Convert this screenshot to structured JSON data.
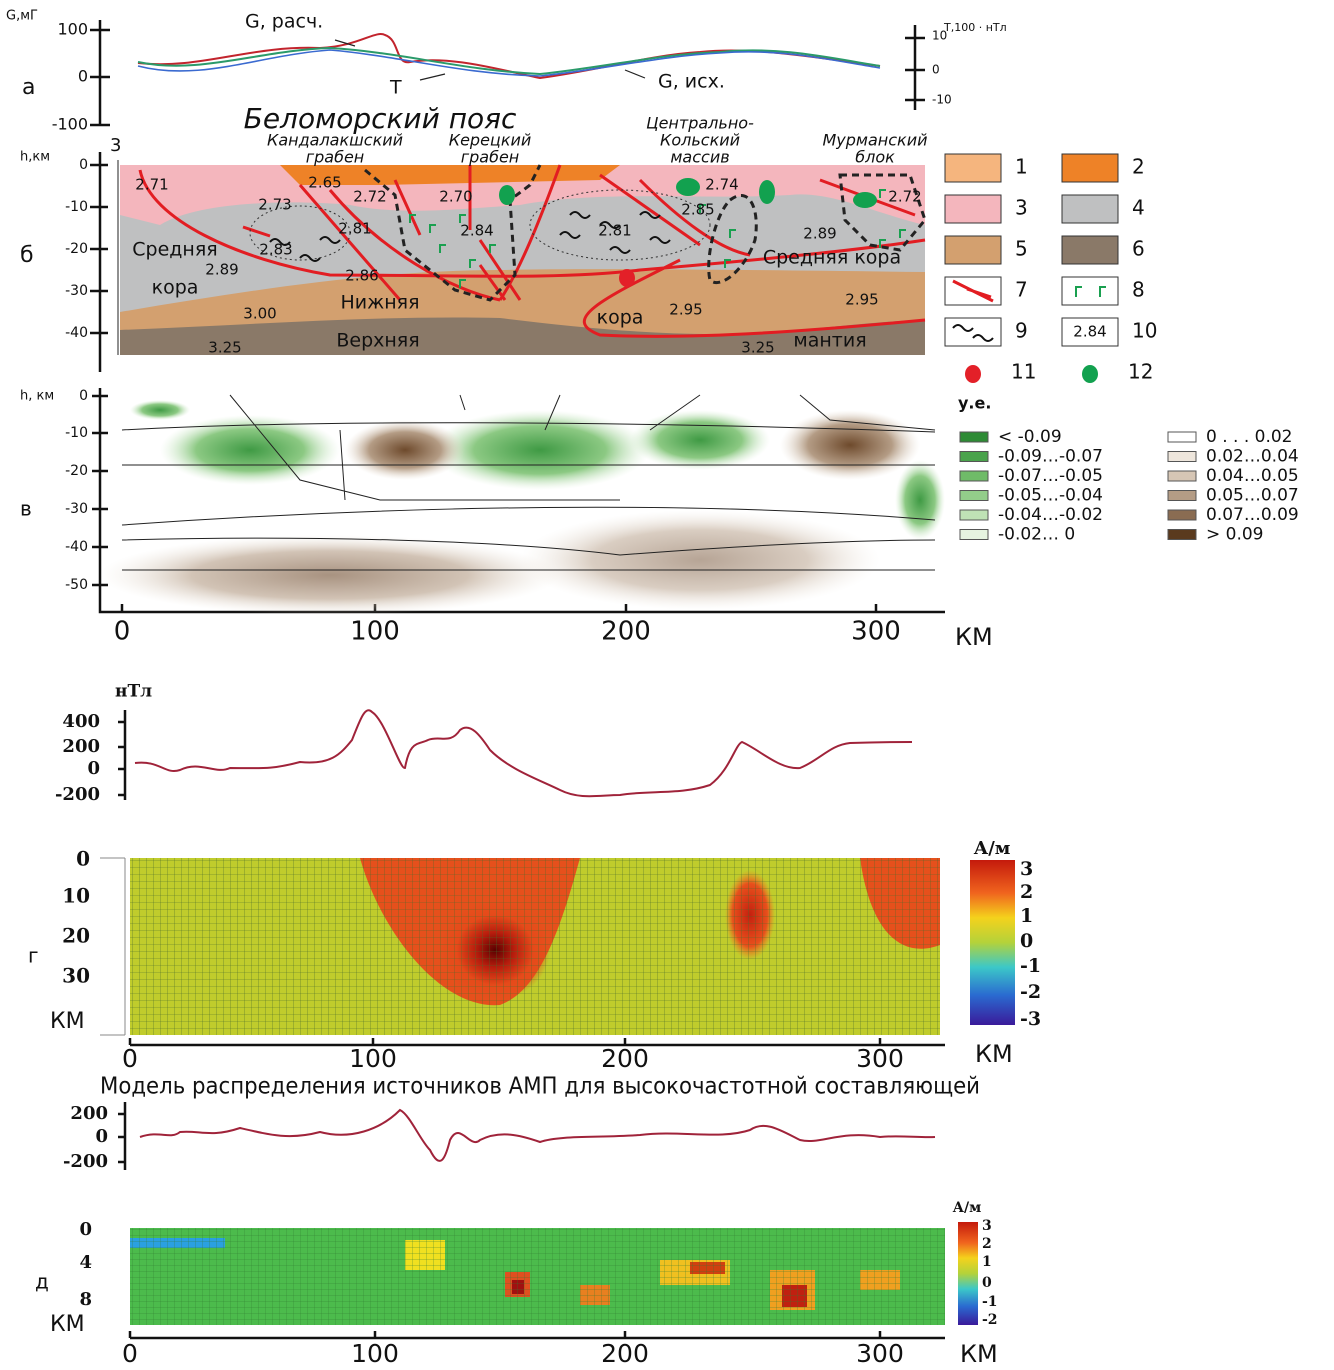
{
  "panel_a": {
    "label": "а",
    "y_axis_label": "G,мГ",
    "y_ticks": [
      100,
      0,
      -100
    ],
    "y2_axis_label": "T,100 · нТл",
    "y2_ticks": [
      10,
      0,
      -10
    ],
    "annotations": [
      "G, расч.",
      "T",
      "G, исх."
    ]
  },
  "panel_b": {
    "label": "б",
    "profile_number": 3,
    "title": "Беломорский пояс",
    "y_axis_label": "h,км",
    "y_ticks": [
      0,
      -10,
      -20,
      -30,
      -40
    ],
    "blocks": [
      [
        "Кандалакшский",
        "грабен"
      ],
      [
        "Керецкий",
        "грабен"
      ],
      [
        "Центрально-",
        "Кольский",
        "массив"
      ],
      [
        "Мурманский",
        "блок"
      ]
    ],
    "densities": [
      "2.71",
      "2.65",
      "2.73",
      "2.72",
      "2.81",
      "2.70",
      "2.84",
      "2.81",
      "2.74",
      "2.85",
      "2.72",
      "2.89",
      "2.83",
      "2.89",
      "2.86",
      "3.00",
      "2.95",
      "2.95",
      "3.25",
      "3.25"
    ],
    "layer_labels": [
      "Средняя",
      "кора",
      "Нижняя",
      "кора",
      "Верхняя",
      "мантия",
      "Средняя кора"
    ],
    "legend": [
      {
        "key": 1,
        "color": "#f5b57e"
      },
      {
        "key": 2,
        "color": "#ee8227"
      },
      {
        "key": 3,
        "color": "#f4b6bd"
      },
      {
        "key": 4,
        "color": "#bfc0c1"
      },
      {
        "key": 5,
        "color": "#d3a06f"
      },
      {
        "key": 6,
        "color": "#8a7968"
      },
      {
        "key": 7
      },
      {
        "key": 8
      },
      {
        "key": 9
      },
      {
        "key": 10,
        "sample": "2.84"
      },
      {
        "key": 11,
        "color": "#e32028"
      },
      {
        "key": 12,
        "color": "#12a14f"
      }
    ]
  },
  "panel_v": {
    "label": "в",
    "y_axis_label": "h, км",
    "y_ticks": [
      0,
      -10,
      -20,
      -30,
      -40,
      -50
    ],
    "x_ticks": [
      0,
      100,
      200,
      300
    ],
    "x_unit": "КМ",
    "legend_title": "у.е.",
    "legend": [
      {
        "label": "< -0.09",
        "color": "#2e8b35"
      },
      {
        "label": "-0.09…-0.07",
        "color": "#4aa34c"
      },
      {
        "label": "-0.07…-0.05",
        "color": "#6fbb68"
      },
      {
        "label": "-0.05…-0.04",
        "color": "#93cd8a"
      },
      {
        "label": "-0.04…-0.02",
        "color": "#bfe2b5"
      },
      {
        "label": "-0.02… 0",
        "color": "#e6f3e0"
      },
      {
        "label": "0  . . . 0.02",
        "color": "#ffffff"
      },
      {
        "label": "0.02…0.04",
        "color": "#eee6dc"
      },
      {
        "label": "0.04…0.05",
        "color": "#d6c6b5"
      },
      {
        "label": "0.05…0.07",
        "color": "#b49c85"
      },
      {
        "label": "0.07…0.09",
        "color": "#8a6c52"
      },
      {
        "label": "> 0.09",
        "color": "#5a3a1e"
      }
    ]
  },
  "panel_g": {
    "curve_unit": "нТл",
    "curve_ticks": [
      400,
      200,
      0,
      -200
    ],
    "label": "г",
    "depth_ticks": [
      0,
      10,
      20,
      30
    ],
    "depth_unit": "КМ",
    "colorbar_unit": "А/м",
    "colorbar_ticks": [
      3,
      2,
      1,
      0,
      -1,
      -2,
      -3
    ],
    "x_ticks": [
      0,
      100,
      200,
      300
    ],
    "x_unit": "КМ"
  },
  "caption": "Модель распределения источников АМП для высокочастотной составляющей",
  "panel_d": {
    "curve_ticks": [
      200,
      0,
      -200
    ],
    "label": "д",
    "depth_ticks": [
      0,
      4,
      8
    ],
    "depth_unit": "КМ",
    "colorbar_unit": "А/м",
    "colorbar_ticks": [
      3,
      2,
      1,
      0,
      -1,
      -2
    ],
    "x_ticks": [
      0,
      100,
      200,
      300
    ],
    "x_unit": "КМ"
  }
}
